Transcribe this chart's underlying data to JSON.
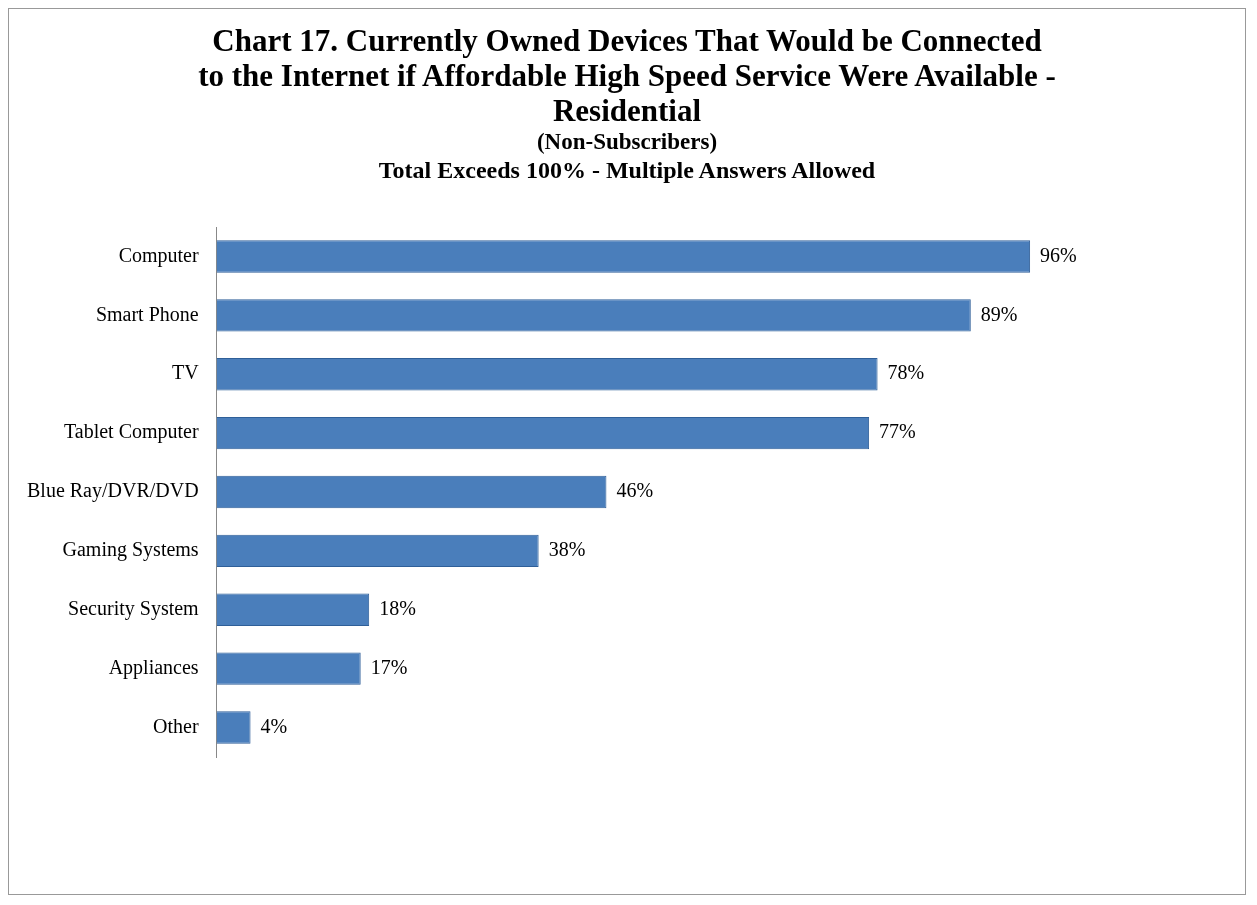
{
  "chart_data": {
    "type": "bar",
    "orientation": "horizontal",
    "title": "Chart 17. Currently Owned Devices That Would be Connected to the Internet if Affordable High Speed Service Were Available - Residential",
    "subtitle": "(Non-Subscribers)",
    "annotations": [
      "Total Exceeds 100% - Multiple Answers Allowed"
    ],
    "categories": [
      "Computer",
      "Smart Phone",
      "TV",
      "Tablet Computer",
      "Blue Ray/DVR/DVD",
      "Gaming Systems",
      "Security System",
      "Appliances",
      "Other"
    ],
    "values": [
      96,
      89,
      78,
      77,
      46,
      38,
      18,
      17,
      4
    ],
    "value_labels": [
      "96%",
      "89%",
      "78%",
      "77%",
      "46%",
      "38%",
      "18%",
      "17%",
      "4%"
    ],
    "color": "#4a7ebb",
    "legend": false
  }
}
